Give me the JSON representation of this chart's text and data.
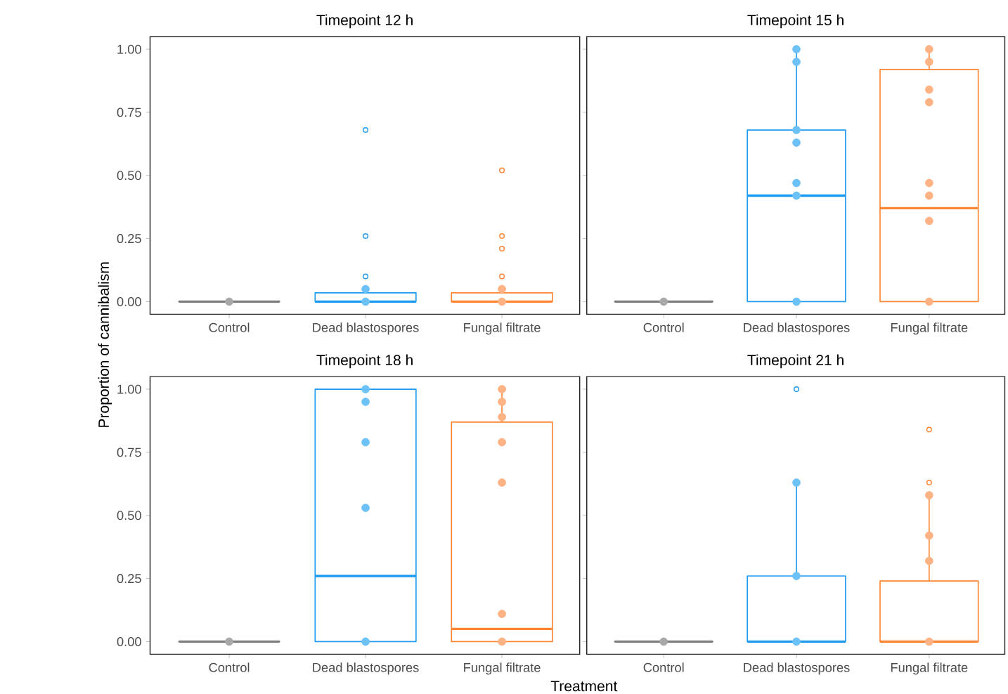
{
  "chart_data": [
    {
      "type": "box",
      "title": "Timepoint 12 h",
      "ylabel": "Proportion of cannibalism",
      "categories": [
        "Control",
        "Dead blastospores",
        "Fungal filtrate"
      ],
      "ylim": [
        -0.05,
        1.05
      ],
      "yticks": [
        {
          "value": 0,
          "label": "0.00"
        },
        {
          "value": 0.25,
          "label": "0.25"
        },
        {
          "value": 0.5,
          "label": "0.50"
        },
        {
          "value": 0.75,
          "label": "0.75"
        },
        {
          "value": 1,
          "label": "1.00"
        }
      ],
      "marker": "circle",
      "series": [
        {
          "type": "box",
          "colors": [
            "#7f7f7f",
            "#1e9bf0",
            "#ff8533"
          ],
          "boxes": [
            {
              "low": 0,
              "q1": 0,
              "median": 0,
              "q3": 0,
              "high": 0
            },
            {
              "low": 0,
              "q1": 0,
              "median": 0,
              "q3": 0.035,
              "high": 0.05,
              "outliers": [
                0.68,
                0.26,
                0.1
              ]
            },
            {
              "low": 0,
              "q1": 0,
              "median": 0,
              "q3": 0.035,
              "high": 0.05,
              "outliers": [
                0.52,
                0.26,
                0.21,
                0.1
              ]
            }
          ]
        },
        {
          "type": "scatter",
          "color": "#a8a8a8",
          "x": [
            "Control"
          ],
          "values": [
            0
          ]
        },
        {
          "type": "scatter",
          "color": "#6cc1f7",
          "x": [
            "Dead blastospores",
            "Dead blastospores"
          ],
          "values": [
            0.05,
            0
          ]
        },
        {
          "type": "scatter",
          "color": "#ffb283",
          "x": [
            "Fungal filtrate",
            "Fungal filtrate"
          ],
          "values": [
            0.05,
            0
          ]
        }
      ]
    },
    {
      "type": "box",
      "title": "Timepoint 15 h",
      "categories": [
        "Control",
        "Dead blastospores",
        "Fungal filtrate"
      ],
      "ylim": [
        -0.05,
        1.05
      ],
      "yticks": [
        0,
        0.25,
        0.5,
        0.75,
        1
      ],
      "tick_labels": "x",
      "marker": "circle",
      "series": [
        {
          "type": "box",
          "colors": [
            "#7f7f7f",
            "#1e9bf0",
            "#ff8533"
          ],
          "boxes": [
            {
              "low": 0,
              "q1": 0,
              "median": 0,
              "q3": 0,
              "high": 0
            },
            {
              "low": 0,
              "q1": 0,
              "median": 0.42,
              "q3": 0.68,
              "high": 1
            },
            {
              "low": 0,
              "q1": 0,
              "median": 0.37,
              "q3": 0.92,
              "high": 1
            }
          ]
        },
        {
          "type": "scatter",
          "color": "#a8a8a8",
          "x": [
            "Control"
          ],
          "values": [
            0
          ]
        },
        {
          "type": "scatter",
          "color": "#6cc1f7",
          "x": [
            "Dead blastospores",
            "Dead blastospores",
            "Dead blastospores",
            "Dead blastospores",
            "Dead blastospores",
            "Dead blastospores",
            "Dead blastospores"
          ],
          "values": [
            1,
            0.95,
            0.68,
            0.63,
            0.47,
            0.42,
            0
          ]
        },
        {
          "type": "scatter",
          "color": "#ffb283",
          "x": [
            "Fungal filtrate",
            "Fungal filtrate",
            "Fungal filtrate",
            "Fungal filtrate",
            "Fungal filtrate",
            "Fungal filtrate",
            "Fungal filtrate",
            "Fungal filtrate"
          ],
          "values": [
            1,
            0.95,
            0.84,
            0.79,
            0.47,
            0.42,
            0.32,
            0
          ]
        }
      ]
    },
    {
      "type": "box",
      "title": "Timepoint 18 h",
      "xlabel": "Treatment",
      "categories": [
        "Control",
        "Dead blastospores",
        "Fungal filtrate"
      ],
      "ylim": [
        -0.05,
        1.05
      ],
      "yticks": [
        {
          "value": 0,
          "label": "0.00"
        },
        {
          "value": 0.25,
          "label": "0.25"
        },
        {
          "value": 0.5,
          "label": "0.50"
        },
        {
          "value": 0.75,
          "label": "0.75"
        },
        {
          "value": 1,
          "label": "1.00"
        }
      ],
      "marker": "circle",
      "series": [
        {
          "type": "box",
          "colors": [
            "#7f7f7f",
            "#1e9bf0",
            "#ff8533"
          ],
          "boxes": [
            {
              "low": 0,
              "q1": 0,
              "median": 0,
              "q3": 0,
              "high": 0
            },
            {
              "low": 0,
              "q1": 0,
              "median": 0.26,
              "q3": 1,
              "high": 1
            },
            {
              "low": 0,
              "q1": 0,
              "median": 0.05,
              "q3": 0.87,
              "high": 1
            }
          ]
        },
        {
          "type": "scatter",
          "color": "#a8a8a8",
          "x": [
            "Control"
          ],
          "values": [
            0
          ]
        },
        {
          "type": "scatter",
          "color": "#6cc1f7",
          "x": [
            "Dead blastospores",
            "Dead blastospores",
            "Dead blastospores",
            "Dead blastospores",
            "Dead blastospores"
          ],
          "values": [
            1,
            0.95,
            0.79,
            0.53,
            0
          ]
        },
        {
          "type": "scatter",
          "color": "#ffb283",
          "x": [
            "Fungal filtrate",
            "Fungal filtrate",
            "Fungal filtrate",
            "Fungal filtrate",
            "Fungal filtrate",
            "Fungal filtrate",
            "Fungal filtrate"
          ],
          "values": [
            1,
            0.95,
            0.89,
            0.79,
            0.63,
            0.11,
            0
          ]
        }
      ]
    },
    {
      "type": "box",
      "title": "Timepoint 21 h",
      "categories": [
        "Control",
        "Dead blastospores",
        "Fungal filtrate"
      ],
      "ylim": [
        -0.05,
        1.05
      ],
      "yticks": [
        0,
        0.25,
        0.5,
        0.75,
        1
      ],
      "tick_labels": "x",
      "marker": "circle",
      "series": [
        {
          "type": "box",
          "colors": [
            "#7f7f7f",
            "#1e9bf0",
            "#ff8533"
          ],
          "boxes": [
            {
              "low": 0,
              "q1": 0,
              "median": 0,
              "q3": 0,
              "high": 0
            },
            {
              "low": 0,
              "q1": 0,
              "median": 0,
              "q3": 0.26,
              "high": 0.63,
              "outliers": [
                1
              ]
            },
            {
              "low": 0,
              "q1": 0,
              "median": 0,
              "q3": 0.24,
              "high": 0.58,
              "outliers": [
                0.84,
                0.63
              ]
            }
          ]
        },
        {
          "type": "scatter",
          "color": "#a8a8a8",
          "x": [
            "Control"
          ],
          "values": [
            0
          ]
        },
        {
          "type": "scatter",
          "color": "#6cc1f7",
          "x": [
            "Dead blastospores",
            "Dead blastospores",
            "Dead blastospores"
          ],
          "values": [
            0.63,
            0.26,
            0
          ]
        },
        {
          "type": "scatter",
          "color": "#ffb283",
          "x": [
            "Fungal filtrate",
            "Fungal filtrate",
            "Fungal filtrate",
            "Fungal filtrate"
          ],
          "values": [
            0.58,
            0.42,
            0.32,
            0
          ]
        }
      ]
    }
  ]
}
